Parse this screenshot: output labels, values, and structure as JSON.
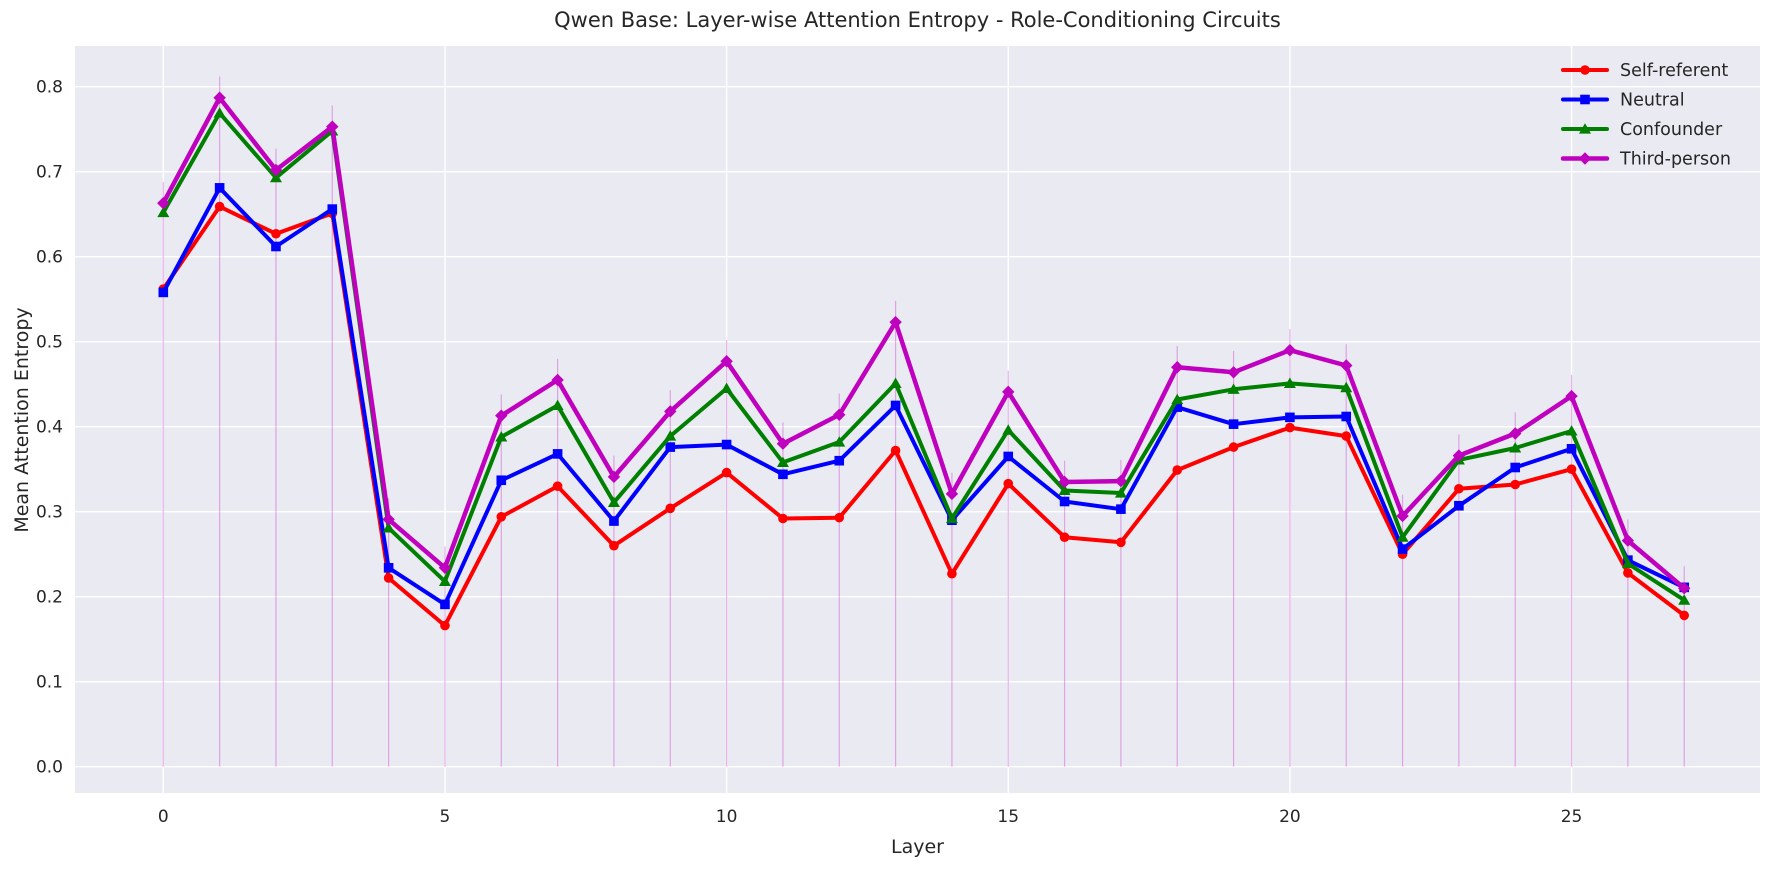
{
  "figure": {
    "background": "#ffffff",
    "axes_background": "#eaeaf2",
    "grid_color": "#ffffff",
    "text_color": "#262626"
  },
  "chart_data": {
    "type": "line",
    "title": "Qwen Base: Layer-wise Attention Entropy - Role-Conditioning Circuits",
    "xlabel": "Layer",
    "ylabel": "Mean Attention Entropy",
    "x": [
      0,
      1,
      2,
      3,
      4,
      5,
      6,
      7,
      8,
      9,
      10,
      11,
      12,
      13,
      14,
      15,
      16,
      17,
      18,
      19,
      20,
      21,
      22,
      23,
      24,
      25,
      26,
      27
    ],
    "xtick_values": [
      0,
      5,
      10,
      15,
      20,
      25
    ],
    "xtick_labels": [
      "0",
      "5",
      "10",
      "15",
      "20",
      "25"
    ],
    "ytick_values": [
      0.0,
      0.1,
      0.2,
      0.3,
      0.4,
      0.5,
      0.6,
      0.7,
      0.8
    ],
    "ytick_labels": [
      "0.0",
      "0.1",
      "0.2",
      "0.3",
      "0.4",
      "0.5",
      "0.6",
      "0.7",
      "0.8"
    ],
    "xlim": [
      -1.57,
      28.45
    ],
    "ylim": [
      -0.031,
      0.848
    ],
    "grid": true,
    "legend_position": "upper right",
    "series": [
      {
        "name": "Self-referent",
        "color": "#ff0000",
        "marker": "circle",
        "values": [
          0.562,
          0.659,
          0.627,
          0.651,
          0.222,
          0.166,
          0.294,
          0.33,
          0.26,
          0.304,
          0.346,
          0.292,
          0.293,
          0.372,
          0.227,
          0.333,
          0.27,
          0.264,
          0.349,
          0.376,
          0.399,
          0.389,
          0.25,
          0.327,
          0.332,
          0.35,
          0.228,
          0.178
        ]
      },
      {
        "name": "Neutral",
        "color": "#0000ff",
        "marker": "square",
        "values": [
          0.558,
          0.681,
          0.612,
          0.656,
          0.234,
          0.191,
          0.337,
          0.368,
          0.289,
          0.376,
          0.379,
          0.344,
          0.36,
          0.425,
          0.29,
          0.365,
          0.312,
          0.303,
          0.423,
          0.403,
          0.411,
          0.412,
          0.256,
          0.307,
          0.352,
          0.374,
          0.243,
          0.211
        ]
      },
      {
        "name": "Confounder",
        "color": "#008000",
        "marker": "triangle",
        "values": [
          0.652,
          0.769,
          0.693,
          0.748,
          0.281,
          0.218,
          0.388,
          0.425,
          0.311,
          0.389,
          0.445,
          0.358,
          0.382,
          0.451,
          0.292,
          0.396,
          0.325,
          0.322,
          0.432,
          0.444,
          0.451,
          0.446,
          0.27,
          0.361,
          0.375,
          0.395,
          0.239,
          0.196
        ]
      },
      {
        "name": "Third-person",
        "color": "#bf00bf",
        "marker": "diamond",
        "values": [
          0.663,
          0.787,
          0.702,
          0.753,
          0.291,
          0.234,
          0.413,
          0.455,
          0.341,
          0.418,
          0.477,
          0.38,
          0.414,
          0.523,
          0.321,
          0.441,
          0.335,
          0.336,
          0.47,
          0.464,
          0.49,
          0.472,
          0.295,
          0.366,
          0.392,
          0.436,
          0.266,
          0.21
        ]
      }
    ],
    "stem_lines": {
      "color": "#bf00bf",
      "opacity": 0.3,
      "from": 0,
      "whisker_above_top": 0.025
    }
  }
}
